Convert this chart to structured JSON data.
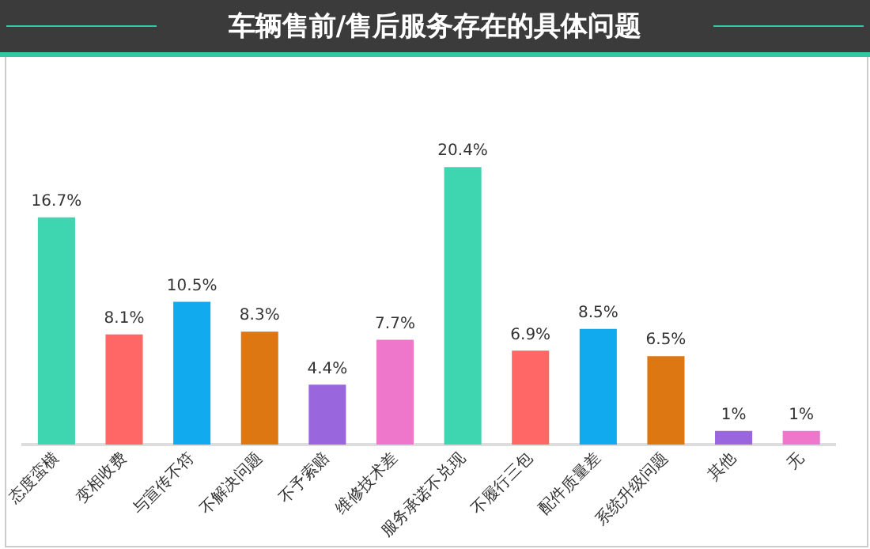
{
  "chart_data": {
    "type": "bar",
    "title": "车辆售前/售后服务存在的具体问题",
    "categories": [
      "态度蛮横",
      "变相收费",
      "与宣传不符",
      "不解决问题",
      "不予索赔",
      "维修技术差",
      "服务承诺不兑现",
      "不履行三包",
      "配件质量差",
      "系统升级问题",
      "其他",
      "无"
    ],
    "values": [
      16.7,
      8.1,
      10.5,
      8.3,
      4.4,
      7.7,
      20.4,
      6.9,
      8.5,
      6.5,
      1,
      1
    ],
    "value_labels": [
      "16.7%",
      "8.1%",
      "10.5%",
      "8.3%",
      "4.4%",
      "7.7%",
      "20.4%",
      "6.9%",
      "8.5%",
      "6.5%",
      "1%",
      "1%"
    ],
    "colors": [
      "#3dd6b0",
      "#ff6666",
      "#11aaee",
      "#dd7711",
      "#9966dd",
      "#ee77cc",
      "#3dd6b0",
      "#ff6666",
      "#11aaee",
      "#dd7711",
      "#9966dd",
      "#ee77cc"
    ],
    "grid": false,
    "legend": false
  }
}
